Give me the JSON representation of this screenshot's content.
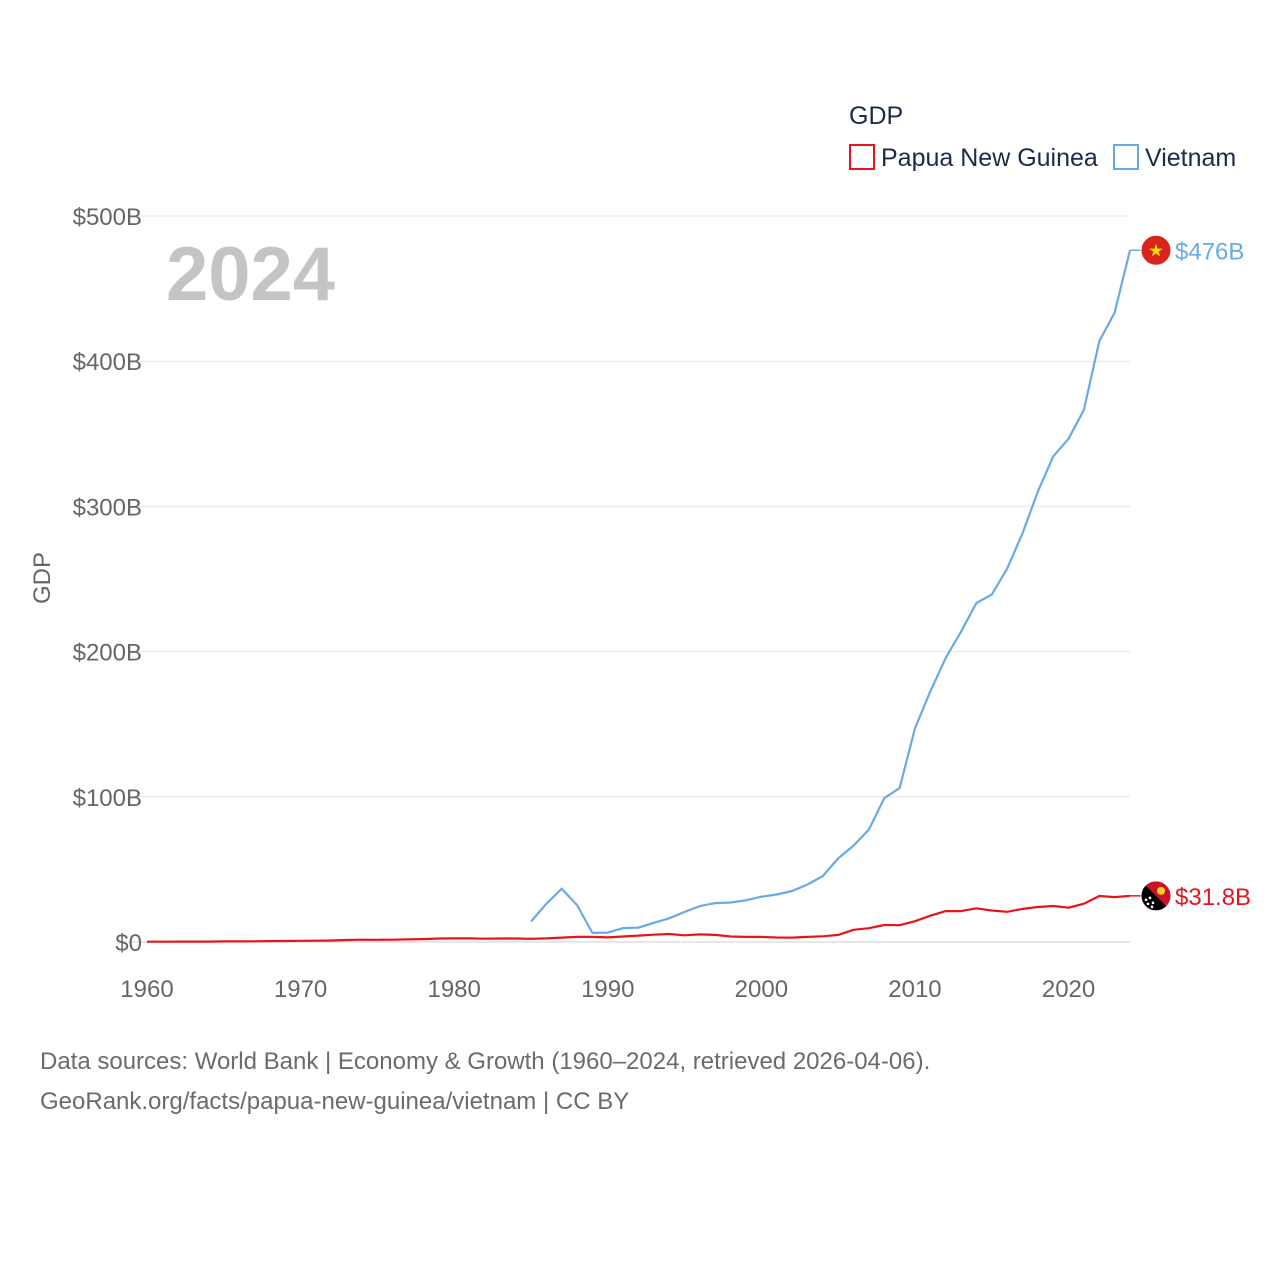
{
  "chart_data": {
    "type": "line",
    "title": "",
    "year_label": "2024",
    "ylabel": "GDP",
    "xlabel": "",
    "xlim": [
      1960,
      2024
    ],
    "ylim": [
      0,
      500
    ],
    "x_ticks": [
      1960,
      1970,
      1980,
      1990,
      2000,
      2010,
      2020
    ],
    "x_tick_labels": [
      "1960",
      "1970",
      "1980",
      "1990",
      "2000",
      "2010",
      "2020"
    ],
    "y_ticks": [
      0,
      100,
      200,
      300,
      400,
      500
    ],
    "y_tick_labels": [
      "$0",
      "$100B",
      "$200B",
      "$300B",
      "$400B",
      "$500B"
    ],
    "legend": {
      "title": "GDP",
      "position": "top-right"
    },
    "series": [
      {
        "name": "Papua New Guinea",
        "color": "#e8141a",
        "end_label": "$31.8B",
        "flag": "papua-new-guinea-flag-icon",
        "points": [
          [
            1960,
            0.2
          ],
          [
            1961,
            0.2
          ],
          [
            1962,
            0.3
          ],
          [
            1963,
            0.3
          ],
          [
            1964,
            0.3
          ],
          [
            1965,
            0.4
          ],
          [
            1966,
            0.4
          ],
          [
            1967,
            0.5
          ],
          [
            1968,
            0.6
          ],
          [
            1969,
            0.7
          ],
          [
            1970,
            0.8
          ],
          [
            1971,
            0.9
          ],
          [
            1972,
            1.0
          ],
          [
            1973,
            1.4
          ],
          [
            1974,
            1.6
          ],
          [
            1975,
            1.5
          ],
          [
            1976,
            1.6
          ],
          [
            1977,
            1.8
          ],
          [
            1978,
            2.0
          ],
          [
            1979,
            2.4
          ],
          [
            1980,
            2.5
          ],
          [
            1981,
            2.5
          ],
          [
            1982,
            2.3
          ],
          [
            1983,
            2.4
          ],
          [
            1984,
            2.4
          ],
          [
            1985,
            2.2
          ],
          [
            1986,
            2.5
          ],
          [
            1987,
            3.0
          ],
          [
            1988,
            3.5
          ],
          [
            1989,
            3.5
          ],
          [
            1990,
            3.2
          ],
          [
            1991,
            3.8
          ],
          [
            1992,
            4.4
          ],
          [
            1993,
            5.0
          ],
          [
            1994,
            5.5
          ],
          [
            1995,
            4.6
          ],
          [
            1996,
            5.2
          ],
          [
            1997,
            4.9
          ],
          [
            1998,
            3.8
          ],
          [
            1999,
            3.5
          ],
          [
            2000,
            3.5
          ],
          [
            2001,
            3.1
          ],
          [
            2002,
            3.0
          ],
          [
            2003,
            3.5
          ],
          [
            2004,
            3.9
          ],
          [
            2005,
            4.9
          ],
          [
            2006,
            8.4
          ],
          [
            2007,
            9.5
          ],
          [
            2008,
            11.7
          ],
          [
            2009,
            11.6
          ],
          [
            2010,
            14.3
          ],
          [
            2011,
            18.1
          ],
          [
            2012,
            21.3
          ],
          [
            2013,
            21.3
          ],
          [
            2014,
            23.2
          ],
          [
            2015,
            21.7
          ],
          [
            2016,
            20.8
          ],
          [
            2017,
            22.8
          ],
          [
            2018,
            24.1
          ],
          [
            2019,
            24.8
          ],
          [
            2020,
            23.6
          ],
          [
            2021,
            26.4
          ],
          [
            2022,
            31.7
          ],
          [
            2023,
            30.9
          ],
          [
            2024,
            31.8
          ]
        ]
      },
      {
        "name": "Vietnam",
        "color": "#6aaae4",
        "end_label": "$476B",
        "flag": "vietnam-flag-icon",
        "points": [
          [
            1985,
            14.1
          ],
          [
            1986,
            26.3
          ],
          [
            1987,
            36.7
          ],
          [
            1988,
            25.4
          ],
          [
            1989,
            6.3
          ],
          [
            1990,
            6.5
          ],
          [
            1991,
            9.6
          ],
          [
            1992,
            9.9
          ],
          [
            1993,
            13.2
          ],
          [
            1994,
            16.3
          ],
          [
            1995,
            20.7
          ],
          [
            1996,
            24.7
          ],
          [
            1997,
            26.8
          ],
          [
            1998,
            27.2
          ],
          [
            1999,
            28.7
          ],
          [
            2000,
            31.2
          ],
          [
            2001,
            32.7
          ],
          [
            2002,
            35.1
          ],
          [
            2003,
            39.6
          ],
          [
            2004,
            45.4
          ],
          [
            2005,
            57.6
          ],
          [
            2006,
            66.4
          ],
          [
            2007,
            77.4
          ],
          [
            2008,
            99.1
          ],
          [
            2009,
            106.0
          ],
          [
            2010,
            147.2
          ],
          [
            2011,
            172.6
          ],
          [
            2012,
            195.6
          ],
          [
            2013,
            213.7
          ],
          [
            2014,
            233.5
          ],
          [
            2015,
            239.3
          ],
          [
            2016,
            257.1
          ],
          [
            2017,
            281.4
          ],
          [
            2018,
            310.1
          ],
          [
            2019,
            334.4
          ],
          [
            2020,
            346.6
          ],
          [
            2021,
            366.5
          ],
          [
            2022,
            413.8
          ],
          [
            2023,
            433.4
          ],
          [
            2024,
            476.4
          ]
        ]
      }
    ]
  },
  "footer": {
    "line1": "Data sources: World Bank | Economy & Growth (1960–2024, retrieved 2026-04-06).",
    "line2": "GeoRank.org/facts/papua-new-guinea/vietnam | CC BY"
  }
}
